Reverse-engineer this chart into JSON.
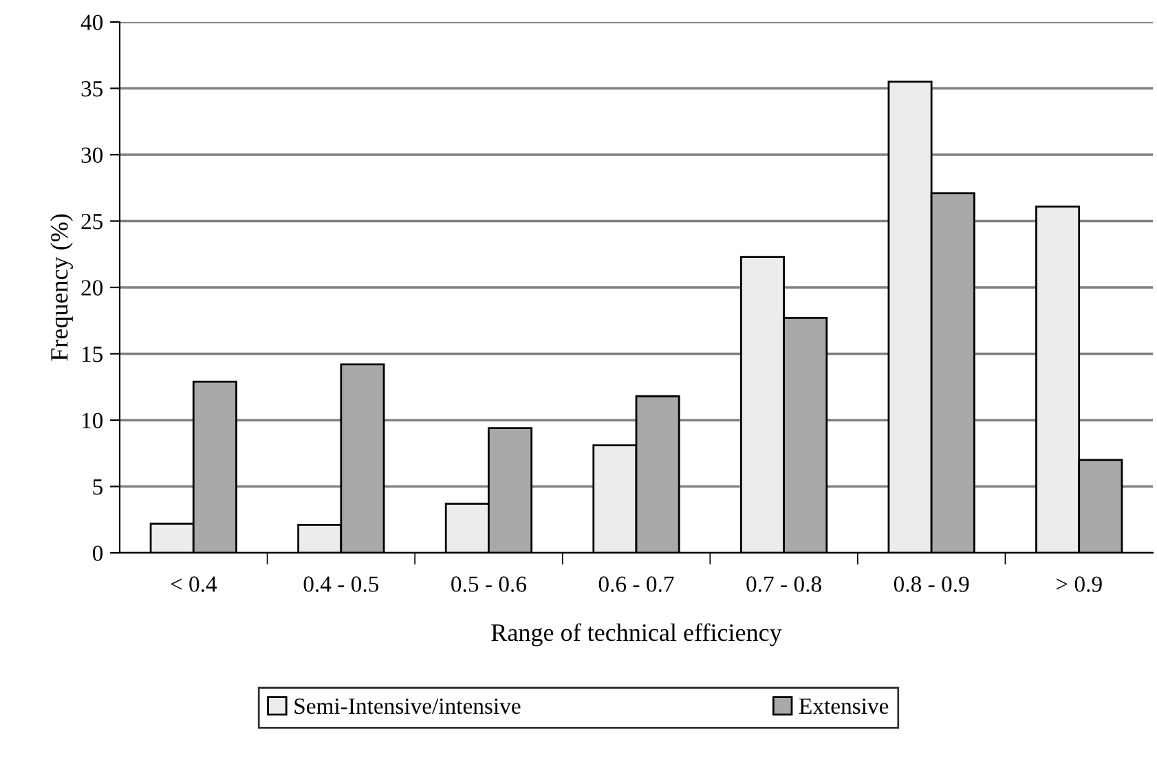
{
  "chart_data": {
    "type": "bar",
    "xlabel": "Range of technical efficiency",
    "ylabel": "Frequency (%)",
    "categories": [
      "< 0.4",
      "0.4 - 0.5",
      "0.5 - 0.6",
      "0.6 - 0.7",
      "0.7 - 0.8",
      "0.8 - 0.9",
      "> 0.9"
    ],
    "series": [
      {
        "name": "Semi-Intensive/intensive",
        "color": "#ececec",
        "values": [
          2.2,
          2.1,
          3.7,
          8.1,
          22.3,
          35.5,
          26.1
        ]
      },
      {
        "name": "Extensive",
        "color": "#a9a9a9",
        "values": [
          12.9,
          14.2,
          9.4,
          11.8,
          17.7,
          27.1,
          7.0
        ]
      }
    ],
    "ylim": [
      0,
      40
    ],
    "yticks": [
      0,
      5,
      10,
      15,
      20,
      25,
      30,
      35,
      40
    ],
    "grid": "y",
    "legend": "bottom"
  }
}
